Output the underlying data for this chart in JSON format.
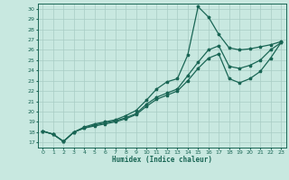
{
  "bg_color": "#c8e8e0",
  "line_color": "#1a6655",
  "grid_color": "#a8ccc4",
  "xlabel": "Humidex (Indice chaleur)",
  "xlim": [
    -0.5,
    23.5
  ],
  "ylim": [
    16.5,
    30.5
  ],
  "xticks": [
    0,
    1,
    2,
    3,
    4,
    5,
    6,
    7,
    8,
    9,
    10,
    11,
    12,
    13,
    14,
    15,
    16,
    17,
    18,
    19,
    20,
    21,
    22,
    23
  ],
  "yticks": [
    17,
    18,
    19,
    20,
    21,
    22,
    23,
    24,
    25,
    26,
    27,
    28,
    29,
    30
  ],
  "line1_x": [
    0,
    1,
    2,
    3,
    4,
    5,
    6,
    7,
    8,
    9,
    10,
    11,
    12,
    13,
    14,
    15,
    16,
    17,
    18,
    19,
    20,
    21,
    22,
    23
  ],
  "line1_y": [
    18.1,
    17.8,
    17.1,
    18.0,
    18.5,
    18.8,
    19.0,
    19.2,
    19.6,
    20.1,
    21.1,
    22.2,
    22.9,
    23.2,
    25.5,
    30.2,
    29.2,
    27.5,
    26.2,
    26.0,
    26.1,
    26.3,
    26.5,
    26.8
  ],
  "line2_x": [
    0,
    1,
    2,
    3,
    4,
    5,
    6,
    7,
    8,
    9,
    10,
    11,
    12,
    13,
    14,
    15,
    16,
    17,
    18,
    19,
    20,
    21,
    22,
    23
  ],
  "line2_y": [
    18.1,
    17.8,
    17.1,
    18.0,
    18.4,
    18.7,
    18.9,
    19.1,
    19.4,
    19.8,
    20.7,
    21.4,
    21.8,
    22.2,
    23.5,
    24.8,
    26.0,
    26.4,
    24.4,
    24.2,
    24.5,
    25.0,
    26.0,
    26.7
  ],
  "line3_x": [
    0,
    1,
    2,
    3,
    4,
    5,
    6,
    7,
    8,
    9,
    10,
    11,
    12,
    13,
    14,
    15,
    16,
    17,
    18,
    19,
    20,
    21,
    22,
    23
  ],
  "line3_y": [
    18.1,
    17.8,
    17.1,
    18.0,
    18.4,
    18.6,
    18.8,
    19.0,
    19.3,
    19.7,
    20.5,
    21.2,
    21.6,
    22.0,
    23.0,
    24.2,
    25.2,
    25.6,
    23.2,
    22.8,
    23.2,
    23.9,
    25.2,
    26.7
  ]
}
